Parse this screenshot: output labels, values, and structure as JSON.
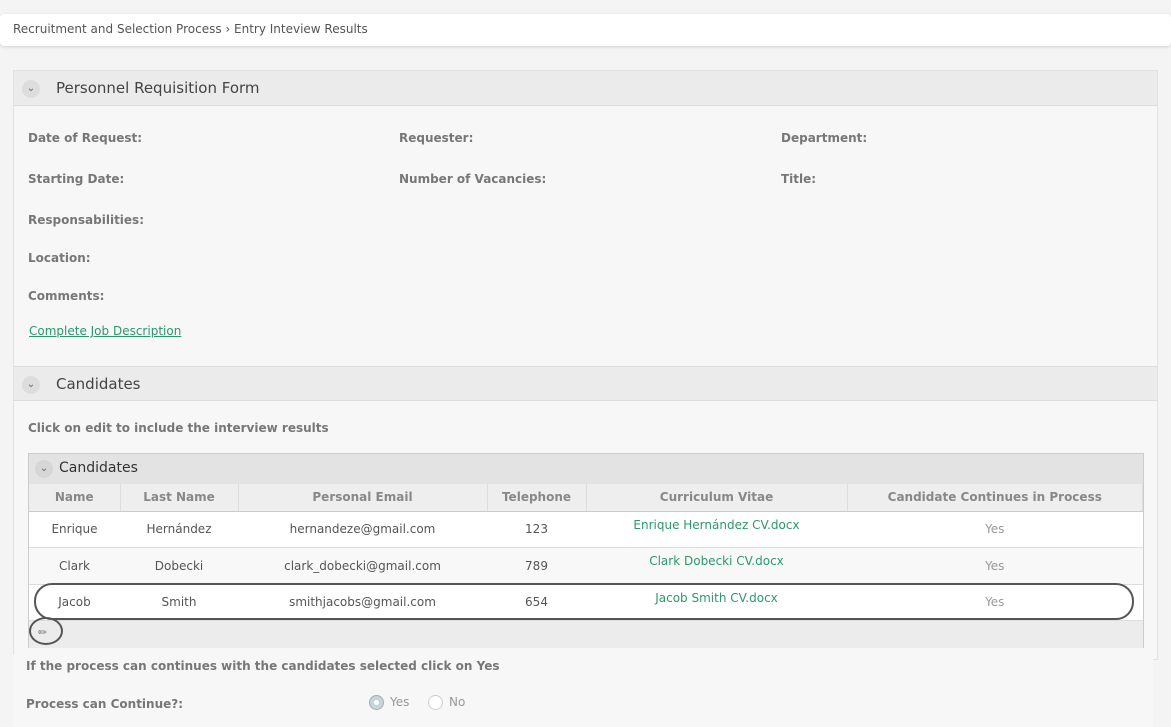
{
  "breadcrumb": "Recruitment and Selection Process › Entry Inteview Results",
  "requisition": {
    "title": "Personnel Requisition Form",
    "fields": {
      "date_of_request": "Date of Request:",
      "requester": "Requester:",
      "department": "Department:",
      "starting_date": "Starting Date:",
      "vacancies": "Number of Vacancies:",
      "title": "Title:",
      "responsabilities": "Responsabilities:",
      "location": "Location:",
      "comments": "Comments:"
    },
    "link": "Complete Job Description"
  },
  "candidates": {
    "title": "Candidates",
    "instruction": "Click on edit to include the interview results",
    "grid_title": "Candidates",
    "columns": [
      "Name",
      "Last Name",
      "Personal Email",
      "Telephone",
      "Curriculum Vitae",
      "Candidate Continues in Process"
    ],
    "rows": [
      [
        "Enrique",
        "Hernández",
        "hernandeze@gmail.com",
        "123",
        "Enrique Hernández CV.docx",
        "Yes"
      ],
      [
        "Clark",
        "Dobecki",
        "clark_dobecki@gmail.com",
        "789",
        "Clark Dobecki CV.docx",
        "Yes"
      ],
      [
        "Jacob",
        "Smith",
        "smithjacobs@gmail.com",
        "654",
        "Jacob Smith CV.docx",
        "Yes"
      ]
    ]
  },
  "process": {
    "instruction": "If the process can continues with the candidates selected click on Yes",
    "label": "Process can Continue?:",
    "options": [
      "Yes",
      "No"
    ],
    "selected": "Yes"
  }
}
